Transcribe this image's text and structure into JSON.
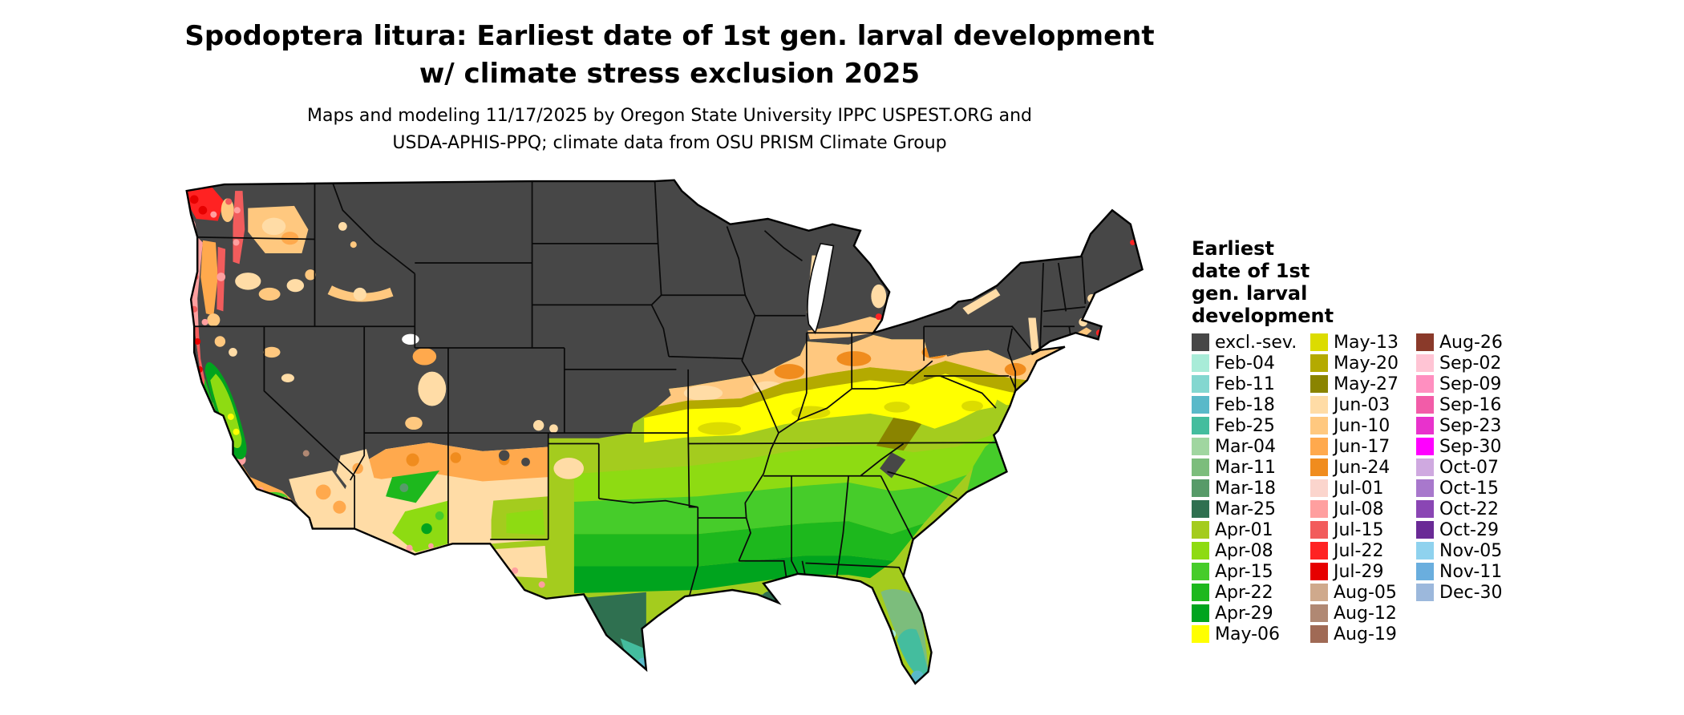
{
  "title": {
    "line1": "Spodoptera litura: Earliest date of 1st gen. larval development",
    "line2": "w/ climate stress exclusion 2025"
  },
  "subtitle": {
    "line1": "Maps and modeling 11/17/2025 by Oregon State University IPPC USPEST.ORG and",
    "line2": "USDA-APHIS-PPQ; climate data from OSU PRISM Climate Group"
  },
  "legend": {
    "title_lines": [
      "Earliest",
      "date of 1st",
      "gen. larval",
      "development"
    ],
    "columns": [
      [
        "excl.-sev.",
        "Feb-04",
        "Feb-11",
        "Feb-18",
        "Feb-25",
        "Mar-04",
        "Mar-11",
        "Mar-18",
        "Mar-25",
        "Apr-01",
        "Apr-08",
        "Apr-15",
        "Apr-22",
        "Apr-29",
        "May-06"
      ],
      [
        "May-13",
        "May-20",
        "May-27",
        "Jun-03",
        "Jun-10",
        "Jun-17",
        "Jun-24",
        "Jul-01",
        "Jul-08",
        "Jul-15",
        "Jul-22",
        "Jul-29",
        "Aug-05",
        "Aug-12",
        "Aug-19"
      ],
      [
        "Aug-26",
        "Sep-02",
        "Sep-09",
        "Sep-16",
        "Sep-23",
        "Sep-30",
        "Oct-07",
        "Oct-15",
        "Oct-22",
        "Oct-29",
        "Nov-05",
        "Nov-11",
        "Dec-30"
      ]
    ]
  },
  "palette": {
    "excl.-sev.": "#474747",
    "Feb-04": "#a8ecd8",
    "Feb-11": "#83d7d0",
    "Feb-18": "#59b9c9",
    "Feb-25": "#44bd9e",
    "Mar-04": "#a0d6a0",
    "Mar-11": "#7cbd7c",
    "Mar-18": "#579b69",
    "Mar-25": "#2f7050",
    "Apr-01": "#a4cc1e",
    "Apr-08": "#8edb12",
    "Apr-15": "#46cc2a",
    "Apr-22": "#1db81d",
    "Apr-29": "#00a41e",
    "May-06": "#ffff00",
    "May-13": "#dcdc00",
    "May-20": "#b4aa00",
    "May-27": "#8a8400",
    "Jun-03": "#ffdca6",
    "Jun-10": "#ffc87f",
    "Jun-17": "#ffa94d",
    "Jun-24": "#f08c1e",
    "Jul-01": "#fbd5cd",
    "Jul-08": "#ff9f9f",
    "Jul-15": "#f25c5c",
    "Jul-22": "#ff2222",
    "Jul-29": "#e60000",
    "Aug-05": "#cfa98c",
    "Aug-12": "#b08873",
    "Aug-19": "#a06a55",
    "Aug-26": "#8a3a2a",
    "Sep-02": "#ffc4d4",
    "Sep-09": "#ff8fc0",
    "Sep-16": "#f25ca8",
    "Sep-23": "#e832cc",
    "Sep-30": "#ff00ff",
    "Oct-07": "#cfa9e0",
    "Oct-15": "#a878cc",
    "Oct-22": "#8a46b4",
    "Oct-29": "#6a2a96",
    "Nov-05": "#8fd2ee",
    "Nov-11": "#6aaede",
    "Dec-30": "#9cb8dc"
  }
}
